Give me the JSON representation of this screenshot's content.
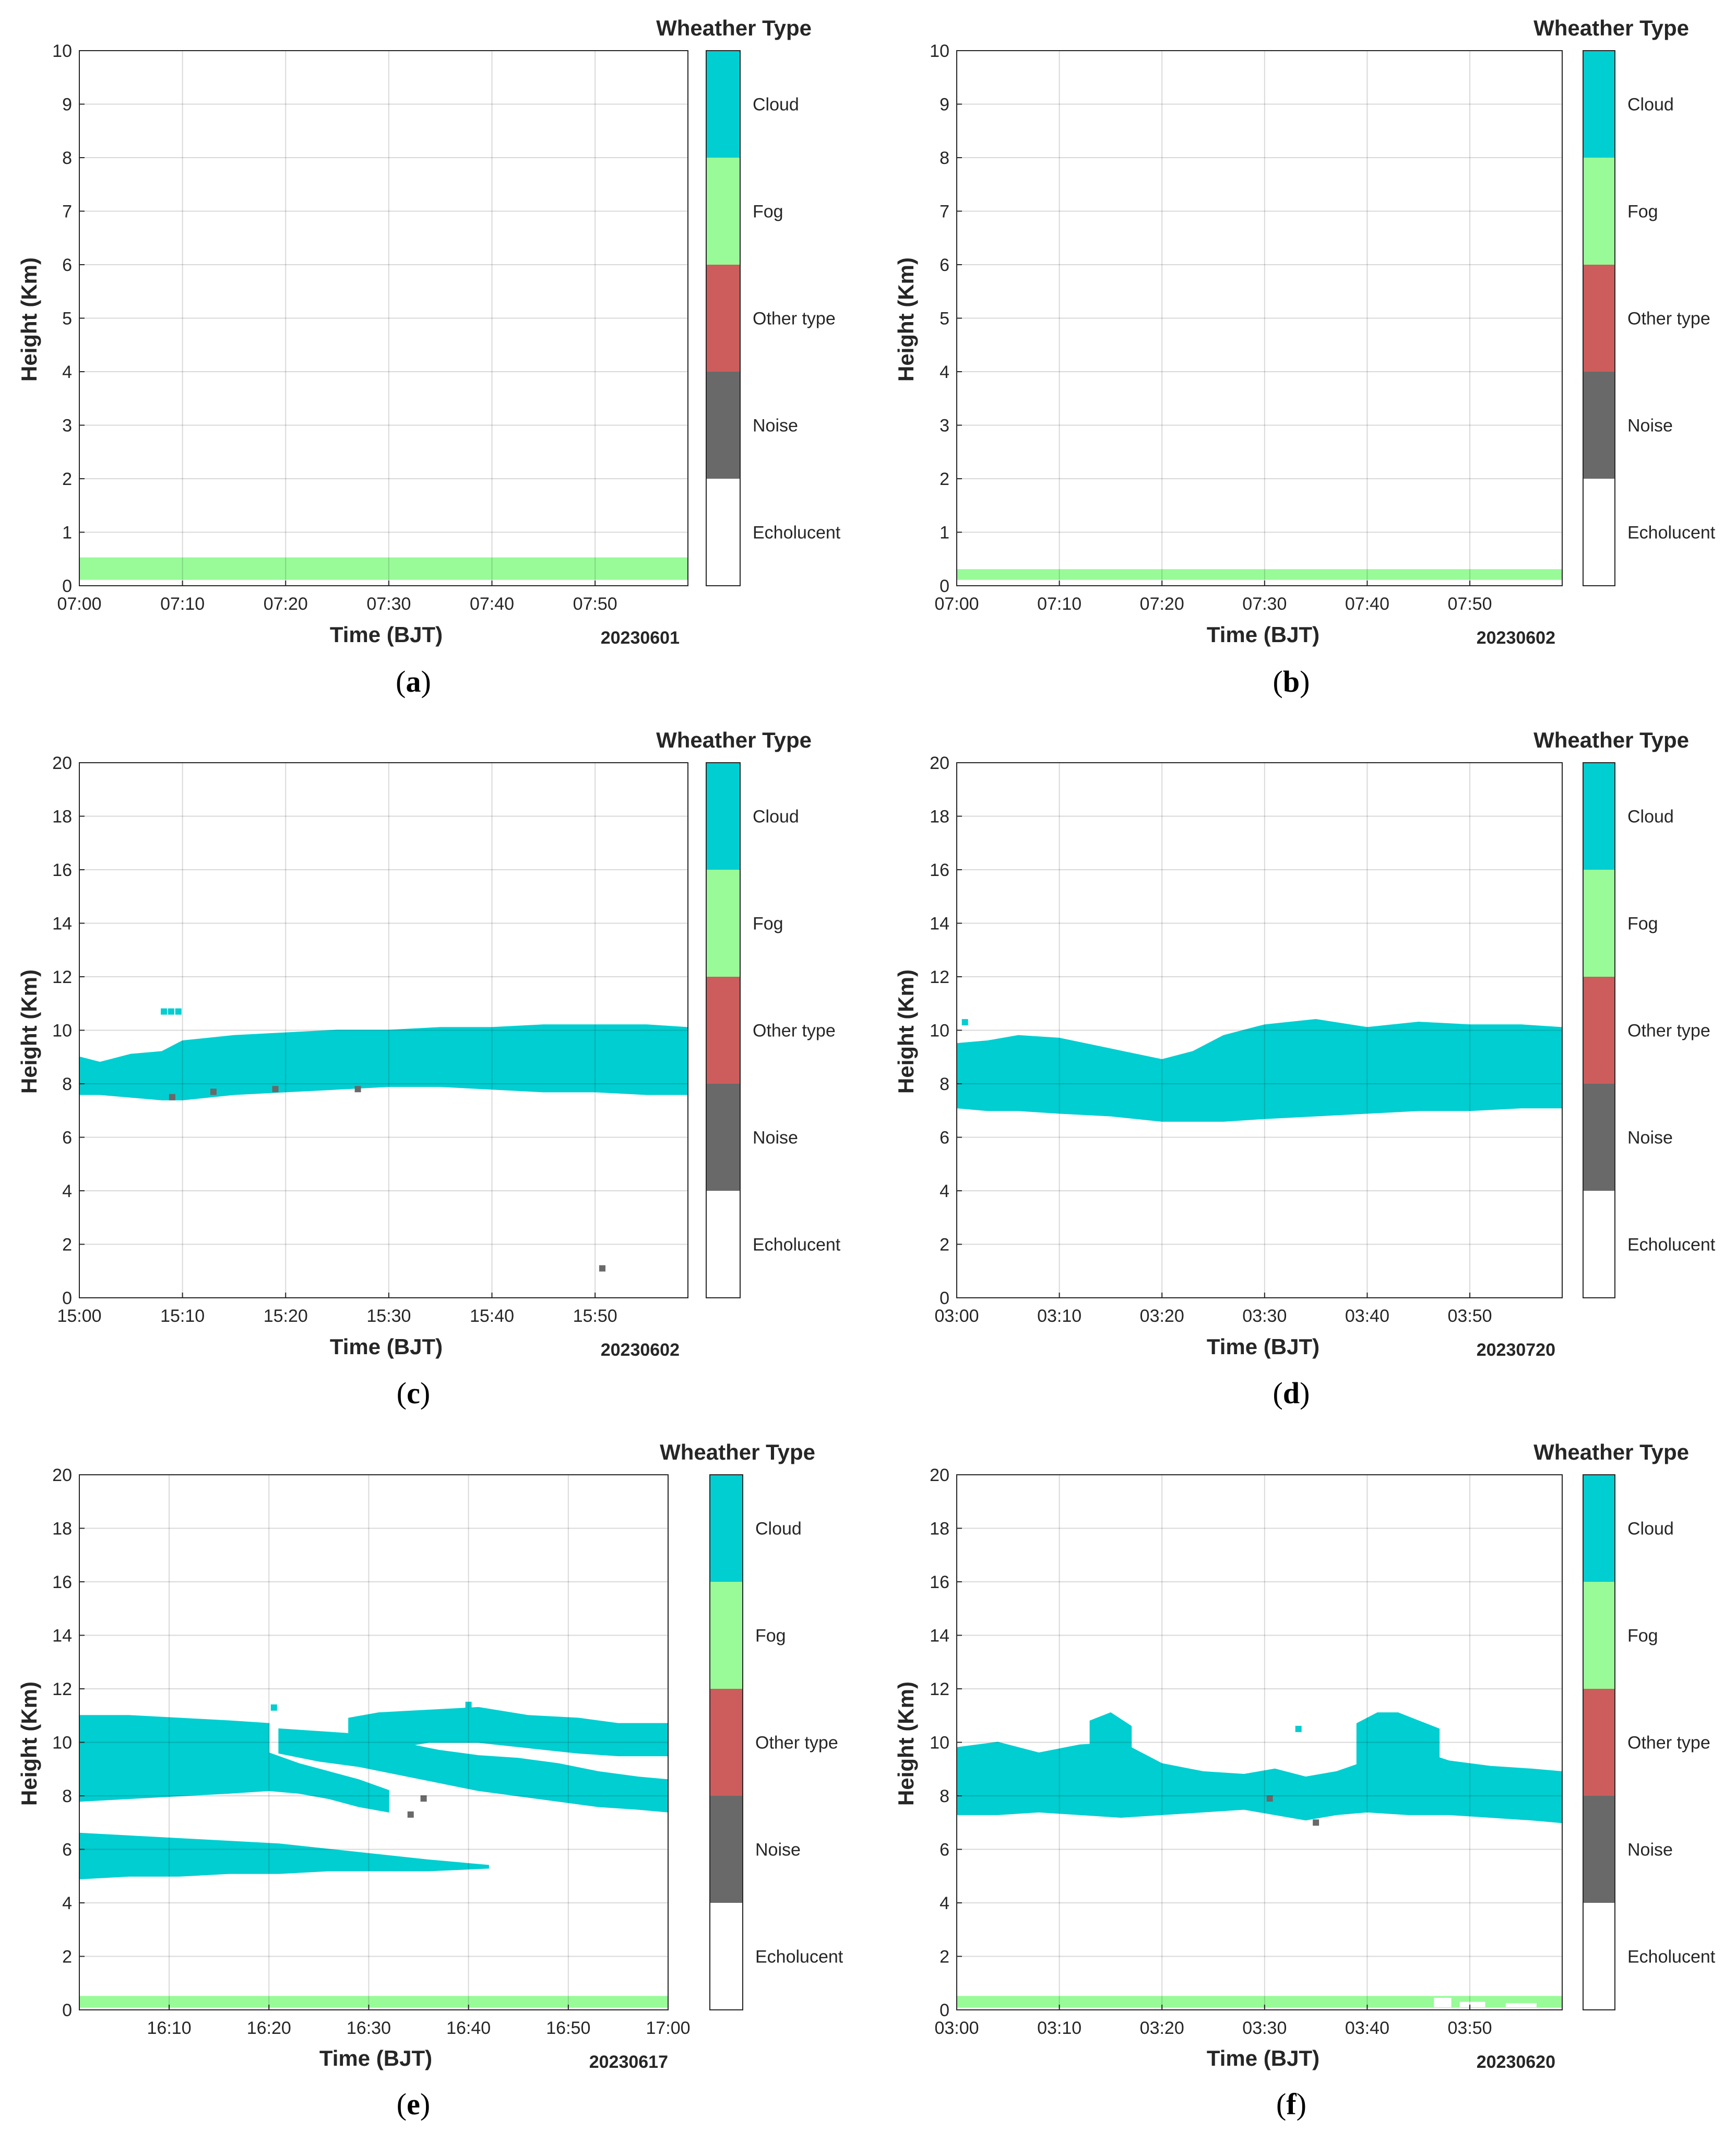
{
  "colors": {
    "Cloud": "#00CED1",
    "Fog": "#98FB98",
    "Other type": "#CD5C5C",
    "Noise": "#696969",
    "Echolucent": "#FFFFFF"
  },
  "legend": {
    "title": "Wheather Type",
    "categories": [
      "Cloud",
      "Fog",
      "Other type",
      "Noise",
      "Echolucent"
    ]
  },
  "chart_data": [
    {
      "type": "heatmap",
      "panel": "a",
      "date": "20230601",
      "xlabel": "Time (BJT)",
      "ylabel": "Height (Km)",
      "xlim": [
        0,
        59
      ],
      "ylim": [
        0,
        10
      ],
      "yticks": [
        0,
        1,
        2,
        3,
        4,
        5,
        6,
        7,
        8,
        9,
        10
      ],
      "xticks": [
        {
          "t": 0,
          "label": "07:00"
        },
        {
          "t": 10,
          "label": "07:10"
        },
        {
          "t": 20,
          "label": "07:20"
        },
        {
          "t": 30,
          "label": "07:30"
        },
        {
          "t": 40,
          "label": "07:40"
        },
        {
          "t": 50,
          "label": "07:50"
        }
      ],
      "grid": true,
      "regions": [
        {
          "type": "Fog",
          "t": [
            0,
            59
          ],
          "lower": [
            0.12,
            0.12
          ],
          "upper": [
            0.52,
            0.52
          ]
        }
      ],
      "specks": []
    },
    {
      "type": "heatmap",
      "panel": "b",
      "date": "20230602",
      "xlabel": "Time (BJT)",
      "ylabel": "Height (Km)",
      "xlim": [
        0,
        59
      ],
      "ylim": [
        0,
        10
      ],
      "yticks": [
        0,
        1,
        2,
        3,
        4,
        5,
        6,
        7,
        8,
        9,
        10
      ],
      "xticks": [
        {
          "t": 0,
          "label": "07:00"
        },
        {
          "t": 10,
          "label": "07:10"
        },
        {
          "t": 20,
          "label": "07:20"
        },
        {
          "t": 30,
          "label": "07:30"
        },
        {
          "t": 40,
          "label": "07:40"
        },
        {
          "t": 50,
          "label": "07:50"
        }
      ],
      "grid": true,
      "regions": [
        {
          "type": "Fog",
          "t": [
            0,
            59
          ],
          "lower": [
            0.12,
            0.12
          ],
          "upper": [
            0.3,
            0.3
          ]
        }
      ],
      "specks": []
    },
    {
      "type": "heatmap",
      "panel": "c",
      "date": "20230602",
      "xlabel": "Time (BJT)",
      "ylabel": "Height (Km)",
      "xlim": [
        0,
        59
      ],
      "ylim": [
        0,
        20
      ],
      "yticks": [
        0,
        2,
        4,
        6,
        8,
        10,
        12,
        14,
        16,
        18,
        20
      ],
      "xticks": [
        {
          "t": 0,
          "label": "15:00"
        },
        {
          "t": 10,
          "label": "15:10"
        },
        {
          "t": 20,
          "label": "15:20"
        },
        {
          "t": 30,
          "label": "15:30"
        },
        {
          "t": 40,
          "label": "15:40"
        },
        {
          "t": 50,
          "label": "15:50"
        }
      ],
      "grid": true,
      "regions": [
        {
          "type": "Cloud",
          "t": [
            0,
            2,
            5,
            8,
            10,
            15,
            20,
            25,
            30,
            35,
            40,
            45,
            50,
            55,
            59
          ],
          "lower": [
            7.6,
            7.6,
            7.5,
            7.4,
            7.4,
            7.6,
            7.7,
            7.8,
            7.9,
            7.9,
            7.8,
            7.7,
            7.7,
            7.6,
            7.6
          ],
          "upper": [
            9.0,
            8.8,
            9.1,
            9.2,
            9.6,
            9.8,
            9.9,
            10.0,
            10.0,
            10.1,
            10.1,
            10.2,
            10.2,
            10.2,
            10.1
          ]
        }
      ],
      "specks": [
        {
          "type": "Cloud",
          "t": 8.2,
          "h": 10.7
        },
        {
          "type": "Cloud",
          "t": 8.9,
          "h": 10.7
        },
        {
          "type": "Cloud",
          "t": 9.6,
          "h": 10.7
        },
        {
          "type": "Noise",
          "t": 50.7,
          "h": 1.1
        },
        {
          "type": "Noise",
          "t": 9.0,
          "h": 7.5
        },
        {
          "type": "Noise",
          "t": 13.0,
          "h": 7.7
        },
        {
          "type": "Noise",
          "t": 19.0,
          "h": 7.8
        },
        {
          "type": "Noise",
          "t": 27.0,
          "h": 7.8
        }
      ]
    },
    {
      "type": "heatmap",
      "panel": "d",
      "date": "20230720",
      "xlabel": "Time (BJT)",
      "ylabel": "Height (Km)",
      "xlim": [
        0,
        59
      ],
      "ylim": [
        0,
        20
      ],
      "yticks": [
        0,
        2,
        4,
        6,
        8,
        10,
        12,
        14,
        16,
        18,
        20
      ],
      "xticks": [
        {
          "t": 0,
          "label": "03:00"
        },
        {
          "t": 10,
          "label": "03:10"
        },
        {
          "t": 20,
          "label": "03:20"
        },
        {
          "t": 30,
          "label": "03:30"
        },
        {
          "t": 40,
          "label": "03:40"
        },
        {
          "t": 50,
          "label": "03:50"
        }
      ],
      "grid": true,
      "regions": [
        {
          "type": "Cloud",
          "t": [
            0,
            3,
            6,
            10,
            15,
            20,
            23,
            26,
            30,
            35,
            40,
            45,
            50,
            55,
            59
          ],
          "lower": [
            7.1,
            7.0,
            7.0,
            6.9,
            6.8,
            6.6,
            6.6,
            6.6,
            6.7,
            6.8,
            6.9,
            7.0,
            7.0,
            7.1,
            7.1
          ],
          "upper": [
            9.5,
            9.6,
            9.8,
            9.7,
            9.3,
            8.9,
            9.2,
            9.8,
            10.2,
            10.4,
            10.1,
            10.3,
            10.2,
            10.2,
            10.1
          ]
        }
      ],
      "specks": [
        {
          "type": "Cloud",
          "t": 0.8,
          "h": 10.3
        }
      ]
    },
    {
      "type": "heatmap",
      "panel": "e",
      "date": "20230617",
      "xlabel": "Time (BJT)",
      "ylabel": "Height (Km)",
      "xlim": [
        0,
        59
      ],
      "ylim": [
        0,
        20
      ],
      "yticks": [
        0,
        2,
        4,
        6,
        8,
        10,
        12,
        14,
        16,
        18,
        20
      ],
      "xticks": [
        {
          "t": 9,
          "label": "16:10"
        },
        {
          "t": 19,
          "label": "16:20"
        },
        {
          "t": 29,
          "label": "16:30"
        },
        {
          "t": 39,
          "label": "16:40"
        },
        {
          "t": 49,
          "label": "16:50"
        },
        {
          "t": 59,
          "label": "17:00"
        }
      ],
      "grid": true,
      "regions": [
        {
          "type": "Fog",
          "t": [
            0,
            59
          ],
          "lower": [
            0.1,
            0.1
          ],
          "upper": [
            0.5,
            0.5
          ]
        },
        {
          "type": "Cloud",
          "t": [
            0,
            5,
            10,
            15,
            20,
            25,
            30,
            35,
            41
          ],
          "lower": [
            4.9,
            5.0,
            5.0,
            5.1,
            5.1,
            5.2,
            5.2,
            5.2,
            5.3
          ],
          "upper": [
            6.6,
            6.5,
            6.4,
            6.3,
            6.2,
            6.0,
            5.8,
            5.6,
            5.4
          ]
        },
        {
          "type": "Cloud",
          "t": [
            0,
            5,
            10,
            15,
            19
          ],
          "lower": [
            7.8,
            7.9,
            8.0,
            8.1,
            8.2
          ],
          "upper": [
            11.0,
            11.0,
            10.9,
            10.8,
            10.7
          ]
        },
        {
          "type": "Cloud",
          "t": [
            19,
            22,
            25,
            28,
            31
          ],
          "lower": [
            8.2,
            8.1,
            7.9,
            7.6,
            7.4
          ],
          "upper": [
            9.6,
            9.2,
            8.9,
            8.6,
            8.2
          ]
        },
        {
          "type": "Cloud",
          "t": [
            20,
            24,
            28,
            32,
            36,
            40,
            44,
            48,
            52,
            56,
            59
          ],
          "lower": [
            9.6,
            9.3,
            9.1,
            8.8,
            8.5,
            8.2,
            8.0,
            7.8,
            7.6,
            7.5,
            7.4
          ],
          "upper": [
            10.5,
            10.4,
            10.3,
            10.0,
            9.7,
            9.5,
            9.4,
            9.2,
            8.9,
            8.7,
            8.6
          ]
        },
        {
          "type": "Cloud",
          "t": [
            27,
            30,
            35,
            40,
            45,
            50,
            54,
            59
          ],
          "lower": [
            9.8,
            9.7,
            10.0,
            10.0,
            9.8,
            9.6,
            9.5,
            9.5
          ],
          "upper": [
            10.9,
            11.1,
            11.2,
            11.3,
            11.0,
            10.9,
            10.7,
            10.7
          ]
        }
      ],
      "specks": [
        {
          "type": "Noise",
          "t": 33.2,
          "h": 7.3
        },
        {
          "type": "Noise",
          "t": 34.5,
          "h": 7.9
        },
        {
          "type": "Cloud",
          "t": 39.0,
          "h": 11.4
        },
        {
          "type": "Cloud",
          "t": 19.5,
          "h": 11.3
        }
      ]
    },
    {
      "type": "heatmap",
      "panel": "f",
      "date": "20230620",
      "xlabel": "Time (BJT)",
      "ylabel": "Height (Km)",
      "xlim": [
        0,
        59
      ],
      "ylim": [
        0,
        20
      ],
      "yticks": [
        0,
        2,
        4,
        6,
        8,
        10,
        12,
        14,
        16,
        18,
        20
      ],
      "xticks": [
        {
          "t": 0,
          "label": "03:00"
        },
        {
          "t": 10,
          "label": "03:10"
        },
        {
          "t": 20,
          "label": "03:20"
        },
        {
          "t": 30,
          "label": "03:30"
        },
        {
          "t": 40,
          "label": "03:40"
        },
        {
          "t": 50,
          "label": "03:50"
        }
      ],
      "grid": true,
      "regions": [
        {
          "type": "Fog",
          "t": [
            0,
            59
          ],
          "lower": [
            0.1,
            0.1
          ],
          "upper": [
            0.5,
            0.5
          ]
        },
        {
          "type": "Cloud",
          "t": [
            0,
            4,
            8,
            12,
            16,
            20,
            24,
            28,
            31,
            34,
            37,
            40,
            44,
            48,
            52,
            56,
            59
          ],
          "lower": [
            7.3,
            7.3,
            7.4,
            7.3,
            7.2,
            7.3,
            7.4,
            7.5,
            7.3,
            7.1,
            7.3,
            7.4,
            7.3,
            7.3,
            7.2,
            7.1,
            7.0
          ],
          "upper": [
            9.8,
            10.0,
            9.6,
            9.9,
            10.0,
            9.2,
            8.9,
            8.8,
            9.0,
            8.7,
            8.9,
            9.3,
            9.8,
            9.3,
            9.1,
            9.0,
            8.9
          ]
        },
        {
          "type": "Cloud",
          "t": [
            13,
            15,
            17
          ],
          "lower": [
            9.5,
            9.3,
            9.5
          ],
          "upper": [
            10.8,
            11.1,
            10.6
          ]
        },
        {
          "type": "Cloud",
          "t": [
            39,
            41,
            43,
            45,
            47
          ],
          "lower": [
            9.2,
            9.0,
            8.8,
            8.9,
            9.2
          ],
          "upper": [
            10.7,
            11.1,
            11.1,
            10.8,
            10.5
          ]
        }
      ],
      "gaps": [
        {
          "t": [
            46.5,
            48.2
          ],
          "lower": 0.1,
          "upper": 0.45
        },
        {
          "t": [
            49,
            51.5
          ],
          "lower": 0.1,
          "upper": 0.3
        },
        {
          "t": [
            53.5,
            56.5
          ],
          "lower": 0.1,
          "upper": 0.25
        }
      ],
      "specks": [
        {
          "type": "Cloud",
          "t": 33.3,
          "h": 10.5
        },
        {
          "type": "Noise",
          "t": 30.5,
          "h": 7.9
        },
        {
          "type": "Noise",
          "t": 35.0,
          "h": 7.0
        }
      ]
    }
  ]
}
